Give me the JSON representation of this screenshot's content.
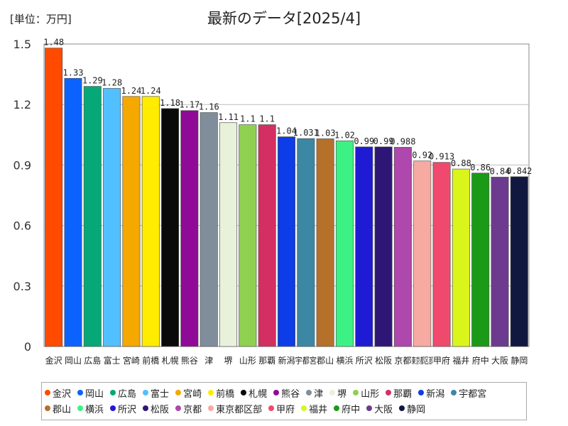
{
  "header": {
    "unit_label": "[単位：万円]",
    "title": "最新のデータ[2025/4]"
  },
  "chart_data": {
    "type": "bar",
    "title": "最新のデータ[2025/4]",
    "ylabel": "[単位：万円]",
    "xlabel": "",
    "ylim": [
      0,
      1.5
    ],
    "yticks": [
      {
        "value": 0,
        "label": "0"
      },
      {
        "value": 0.3,
        "label": "0.3"
      },
      {
        "value": 0.6,
        "label": "0.6"
      },
      {
        "value": 0.9,
        "label": "0.9"
      },
      {
        "value": 1.2,
        "label": "1.2"
      },
      {
        "value": 1.5,
        "label": "1.5"
      }
    ],
    "categories": [
      "金沢",
      "岡山",
      "広島",
      "富士",
      "宮崎",
      "前橋",
      "札幌",
      "熊谷",
      "津",
      "堺",
      "山形",
      "那覇",
      "新潟",
      "宇都宮",
      "郡山",
      "横浜",
      "所沢",
      "松阪",
      "京都",
      "東京都区部",
      "甲府",
      "福井",
      "府中",
      "大阪",
      "静岡"
    ],
    "values": [
      1.48,
      1.33,
      1.29,
      1.28,
      1.24,
      1.24,
      1.18,
      1.17,
      1.16,
      1.11,
      1.1,
      1.1,
      1.04,
      1.031,
      1.03,
      1.02,
      0.99,
      0.99,
      0.988,
      0.92,
      0.913,
      0.88,
      0.86,
      0.84,
      0.842
    ],
    "data_labels": [
      "1.48",
      "1.33",
      "1.29",
      "1.28",
      "1.24",
      "1.24",
      "1.18",
      "1.17",
      "1.16",
      "1.11",
      "1.1",
      "1.1",
      "1.04",
      "1.031",
      "1.03",
      "1.02",
      "0.99",
      "0.99",
      "0.988",
      "0.92",
      "0.913",
      "0.88",
      "0.86",
      "0.84",
      "0.842"
    ],
    "xtick_labels": [
      "金沢",
      "岡山",
      "広島",
      "富士",
      "宮崎",
      "前橋",
      "札幌",
      "熊谷",
      "津",
      "堺",
      "山形",
      "那覇",
      "新潟",
      "宇都宮",
      "郡山",
      "横浜",
      "所沢",
      "松阪",
      "京都",
      "東京都区部",
      "甲府",
      "福井",
      "府中",
      "大阪",
      "静岡"
    ],
    "colors": [
      "#ff4a00",
      "#0c62ff",
      "#06a878",
      "#52c0ff",
      "#f5a800",
      "#ffec00",
      "#0a0a0a",
      "#8f0a96",
      "#7f8e9a",
      "#e8f2da",
      "#8fd051",
      "#d42f62",
      "#0d3de8",
      "#3c87a4",
      "#b5702a",
      "#3df285",
      "#1f1ad4",
      "#2e1676",
      "#ae48ac",
      "#f6aaa2",
      "#ef4a6d",
      "#daf51c",
      "#1b9a17",
      "#6c3a8e",
      "#101840"
    ],
    "grid": true,
    "legend_position": "bottom"
  }
}
